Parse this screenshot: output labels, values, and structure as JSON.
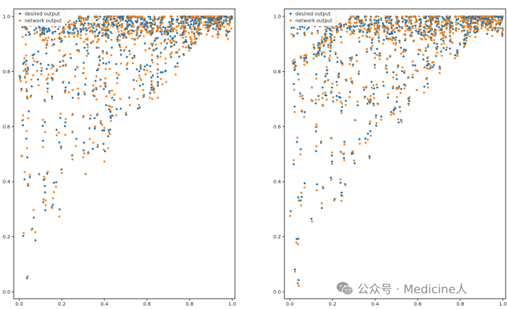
{
  "chart_data": [
    {
      "type": "scatter",
      "xlim": [
        0,
        1
      ],
      "ylim": [
        0,
        1
      ],
      "xticks": [
        "0.0",
        "0.2",
        "0.4",
        "0.6",
        "0.8",
        "1.0"
      ],
      "yticks": [
        "0.0",
        "0.2",
        "0.4",
        "0.6",
        "0.8",
        "1.0"
      ],
      "legend": "top-left",
      "series": [
        {
          "name": "desired output",
          "color": "#1f77b4"
        },
        {
          "name": "network output",
          "color": "#ff7f0e"
        }
      ],
      "points_sampled": 700,
      "noise": 0.04,
      "title": "",
      "xlabel": "",
      "ylabel": ""
    },
    {
      "type": "scatter",
      "xlim": [
        0,
        1
      ],
      "ylim": [
        0,
        1
      ],
      "xticks": [
        "0.0",
        "0.2",
        "0.4",
        "0.6",
        "0.8",
        "1.0"
      ],
      "yticks": [
        "0.0",
        "0.2",
        "0.4",
        "0.6",
        "0.8",
        "1.0"
      ],
      "legend": "top-left",
      "series": [
        {
          "name": "desired output",
          "color": "#1f77b4"
        },
        {
          "name": "network output",
          "color": "#ff7f0e"
        }
      ],
      "points_sampled": 700,
      "noise": 0.02,
      "title": "",
      "xlabel": "",
      "ylabel": ""
    }
  ],
  "watermark": {
    "text": "公众号 · Medicine人",
    "icon": "wechat-icon"
  }
}
